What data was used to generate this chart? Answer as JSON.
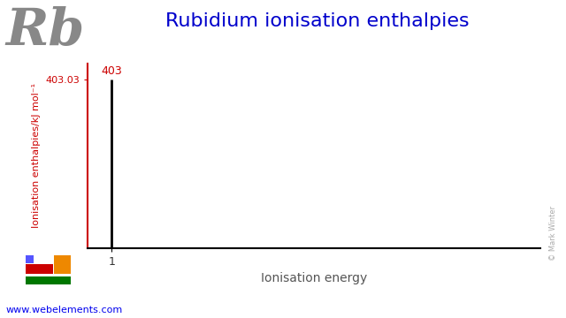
{
  "title": "Rubidium ionisation enthalpies",
  "title_color": "#0000cc",
  "title_fontsize": 16,
  "element_symbol": "Rb",
  "element_fontsize": 42,
  "element_color": "#888888",
  "ionisation_energies": [
    403.03
  ],
  "bar_label": "403",
  "x_tick_label": "1",
  "ylabel": "Ionisation enthalpies/kJ mol⁻¹",
  "ylabel_color": "#cc0000",
  "ylabel_fontsize": 8,
  "xlabel": "Ionisation energy",
  "xlabel_fontsize": 10,
  "xlim": [
    0.5,
    10
  ],
  "ylim": [
    0,
    440
  ],
  "ytick_value": 403.03,
  "ytick_label": "403.03",
  "ytick_color": "#cc0000",
  "bar_color": "#000000",
  "axis_color": "#000000",
  "background_color": "#ffffff",
  "watermark": "© Mark Winter",
  "website": "www.webelements.com",
  "website_color": "#0000ee",
  "periodic_table_colors": {
    "blue": "#5555ff",
    "red": "#cc0000",
    "orange": "#ee8800",
    "green": "#007700"
  }
}
